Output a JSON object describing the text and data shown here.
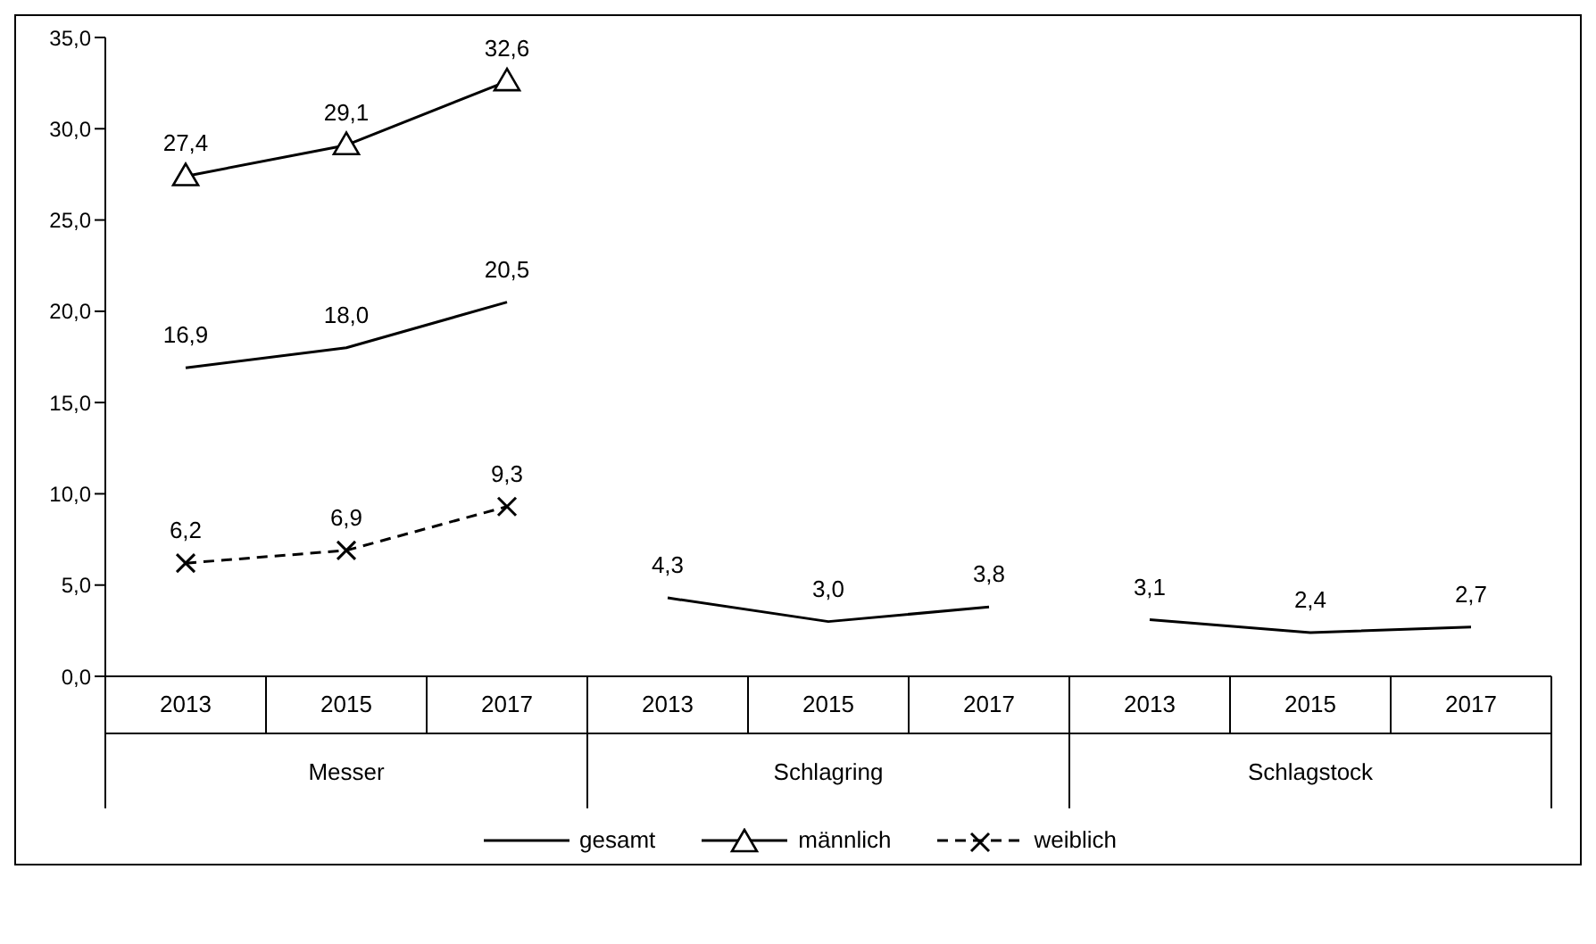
{
  "chart_data": {
    "type": "line",
    "categories": [
      "2013",
      "2015",
      "2017",
      "2013",
      "2015",
      "2017",
      "2013",
      "2015",
      "2017"
    ],
    "annotations": [
      "Messer",
      "Schlagring",
      "Schlagstock"
    ],
    "series": [
      {
        "name": "gesamt",
        "color": "#000000",
        "marker": "none",
        "line_style": "solid",
        "values": [
          16.9,
          18.0,
          20.5,
          4.3,
          3.0,
          3.8,
          3.1,
          2.4,
          2.7
        ],
        "value_labels": [
          "16,9",
          "18,0",
          "20,5",
          "4,3",
          "3,0",
          "3,8",
          "3,1",
          "2,4",
          "2,7"
        ]
      },
      {
        "name": "männlich",
        "color": "#000000",
        "marker": "triangle",
        "line_style": "solid",
        "values": [
          27.4,
          29.1,
          32.6,
          null,
          null,
          null,
          null,
          null,
          null
        ],
        "value_labels": [
          "27,4",
          "29,1",
          "32,6",
          null,
          null,
          null,
          null,
          null,
          null
        ]
      },
      {
        "name": "weiblich",
        "color": "#000000",
        "marker": "cross",
        "line_style": "dashed",
        "values": [
          6.2,
          6.9,
          9.3,
          null,
          null,
          null,
          null,
          null,
          null
        ],
        "value_labels": [
          "6,2",
          "6,9",
          "9,3",
          null,
          null,
          null,
          null,
          null,
          null
        ]
      }
    ],
    "ylim": [
      0,
      35
    ],
    "yticks": [
      {
        "value": 0,
        "label": "0,0"
      },
      {
        "value": 5,
        "label": "5,0"
      },
      {
        "value": 10,
        "label": "10,0"
      },
      {
        "value": 15,
        "label": "15,0"
      },
      {
        "value": 20,
        "label": "20,0"
      },
      {
        "value": 25,
        "label": "25,0"
      },
      {
        "value": 30,
        "label": "30,0"
      },
      {
        "value": 35,
        "label": "35,0"
      }
    ],
    "legend": "bottom"
  }
}
